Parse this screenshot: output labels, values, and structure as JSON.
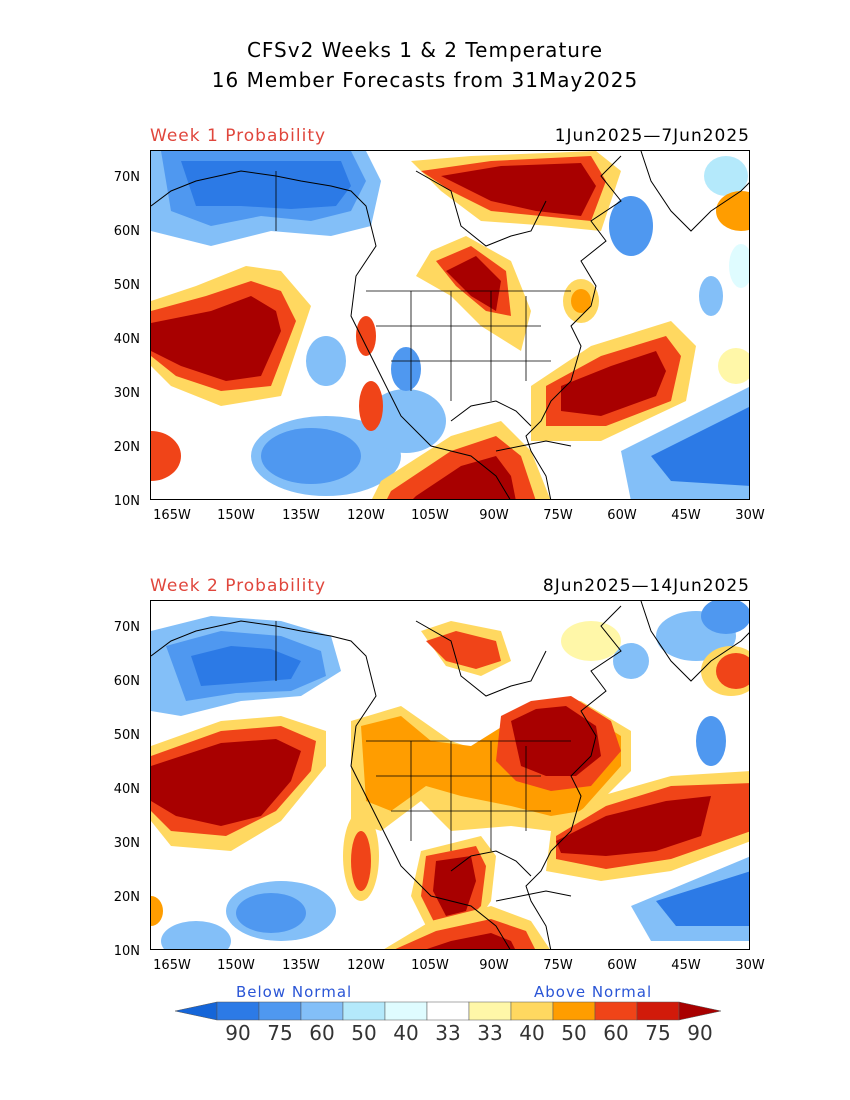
{
  "header": {
    "line1": "CFSv2 Weeks 1 & 2 Temperature",
    "line2": "16 Member Forecasts from 31May2025"
  },
  "panels": [
    {
      "label": "Week 1 Probability",
      "dates": "1Jun2025—7Jun2025"
    },
    {
      "label": "Week 2 Probability",
      "dates": "8Jun2025—14Jun2025"
    }
  ],
  "axes": {
    "lat_labels": [
      "70N",
      "60N",
      "50N",
      "40N",
      "30N",
      "20N",
      "10N"
    ],
    "lon_labels": [
      "165W",
      "150W",
      "135W",
      "120W",
      "105W",
      "90W",
      "75W",
      "60W",
      "45W",
      "30W"
    ]
  },
  "legend": {
    "below_label": "Below Normal",
    "above_label": "Above Normal",
    "values": [
      "90",
      "75",
      "60",
      "50",
      "40",
      "33",
      "33",
      "40",
      "50",
      "60",
      "75",
      "90"
    ],
    "colors": [
      "#1565d8",
      "#2c7ae6",
      "#4f98f0",
      "#83bff8",
      "#b4e9fb",
      "#dffcff",
      "#ffffff",
      "#fff7a8",
      "#ffd860",
      "#ff9d00",
      "#f04418",
      "#d11a0a",
      "#a80000"
    ]
  }
}
